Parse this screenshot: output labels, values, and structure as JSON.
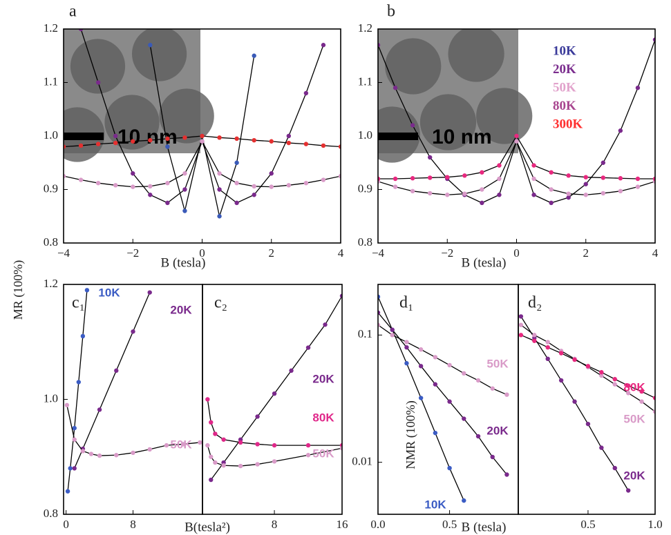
{
  "chart_data": [
    {
      "type": "scatter",
      "label": "a",
      "ylabel": "MR (100%)",
      "xlabel": "B (tesla)",
      "inset_text": "10 nm",
      "xlim": [
        -4,
        4
      ],
      "ylim": [
        0.8,
        1.2
      ],
      "xticks": [
        {
          "value": -4,
          "label": "−4"
        },
        {
          "value": -2,
          "label": "−2"
        },
        0,
        2,
        4
      ],
      "yticks": [
        0.8,
        0.9,
        {
          "value": 1.0,
          "label": "1.0"
        },
        1.1,
        1.2
      ],
      "x": [
        -4,
        -3.5,
        -3,
        -2.5,
        -2,
        -1.5,
        -1,
        -0.5,
        0,
        0.5,
        1,
        1.5,
        2,
        2.5,
        3,
        3.5,
        4
      ],
      "series": [
        {
          "color": "#3a5ab8",
          "values": [
            null,
            null,
            null,
            null,
            null,
            1.17,
            0.98,
            0.86,
            1.0,
            0.85,
            0.95,
            1.15,
            null,
            null,
            null,
            null,
            null
          ]
        },
        {
          "color": "#7a2a8c",
          "values": [
            null,
            1.2,
            1.1,
            1.0,
            0.93,
            0.89,
            0.875,
            0.9,
            0.99,
            0.9,
            0.875,
            0.89,
            0.93,
            1.0,
            1.08,
            1.17,
            null
          ]
        },
        {
          "color": "#d99bc8",
          "values": [
            0.925,
            0.918,
            0.912,
            0.908,
            0.905,
            0.906,
            0.912,
            0.93,
            0.99,
            0.93,
            0.912,
            0.906,
            0.905,
            0.908,
            0.912,
            0.918,
            0.925
          ]
        },
        {
          "color": "#e53030",
          "values": [
            0.98,
            0.982,
            0.985,
            0.987,
            0.99,
            0.992,
            0.995,
            0.997,
            1.0,
            0.997,
            0.995,
            0.992,
            0.99,
            0.987,
            0.985,
            0.982,
            0.98
          ]
        }
      ]
    },
    {
      "type": "scatter",
      "label": "b",
      "xlabel": "B (tesla)",
      "inset_text": "10 nm",
      "xlim": [
        -4,
        4
      ],
      "ylim": [
        0.8,
        1.2
      ],
      "xticks": [
        {
          "value": -4,
          "label": "−4"
        },
        {
          "value": -2,
          "label": "−2"
        },
        0,
        2,
        4
      ],
      "yticks": [
        0.8,
        0.9,
        {
          "value": 1.0,
          "label": "1.0"
        },
        1.1,
        1.2
      ],
      "legend": [
        {
          "name": "10K",
          "color": "#3a3a9a"
        },
        {
          "name": "20K",
          "color": "#7b2d8e"
        },
        {
          "name": "50K",
          "color": "#e2a3cc"
        },
        {
          "name": "80K",
          "color": "#a8458f"
        },
        {
          "name": "300K",
          "color": "#ff3030"
        }
      ],
      "x": [
        -4,
        -3.5,
        -3,
        -2.5,
        -2,
        -1.5,
        -1,
        -0.5,
        0,
        0.5,
        1,
        1.5,
        2,
        2.5,
        3,
        3.5,
        4
      ],
      "series": [
        {
          "color": "#7a2a8c",
          "values": [
            1.17,
            1.09,
            1.02,
            0.96,
            0.92,
            0.89,
            0.875,
            0.89,
            0.99,
            0.89,
            0.875,
            0.885,
            0.91,
            0.95,
            1.01,
            1.09,
            1.18
          ]
        },
        {
          "color": "#d99bc8",
          "values": [
            0.915,
            0.905,
            0.897,
            0.893,
            0.89,
            0.892,
            0.9,
            0.92,
            0.99,
            0.92,
            0.9,
            0.892,
            0.89,
            0.893,
            0.897,
            0.905,
            0.915
          ]
        },
        {
          "color": "#e8287f",
          "values": [
            0.92,
            0.92,
            0.921,
            0.922,
            0.923,
            0.926,
            0.932,
            0.945,
            1.0,
            0.945,
            0.932,
            0.926,
            0.923,
            0.922,
            0.921,
            0.92,
            0.92
          ]
        }
      ]
    },
    {
      "type": "scatter",
      "label": "c₁",
      "xlabel": "B(tesla²)",
      "xlim": [
        -0.3,
        16.3
      ],
      "ylim": [
        0.8,
        1.2
      ],
      "xticks": [
        0,
        8
      ],
      "yticks": [
        0.8,
        {
          "value": 1.0,
          "label": "1.0"
        },
        1.2
      ],
      "series": [
        {
          "name": "10K",
          "color": "#3b5cc4",
          "x": [
            0.2,
            0.5,
            1,
            1.5,
            2,
            2.5
          ],
          "values": [
            0.84,
            0.88,
            0.95,
            1.03,
            1.11,
            1.19
          ]
        },
        {
          "name": "20K",
          "color": "#7a2a8c",
          "x": [
            1,
            2,
            4,
            6,
            8,
            10
          ],
          "values": [
            0.88,
            0.914,
            0.982,
            1.05,
            1.118,
            1.186
          ]
        },
        {
          "name": "50K",
          "color": "#d99bc8",
          "x": [
            0.1,
            1,
            2,
            3,
            4,
            6,
            8,
            10,
            12,
            14,
            16
          ],
          "values": [
            0.99,
            0.93,
            0.91,
            0.905,
            0.902,
            0.903,
            0.907,
            0.913,
            0.92,
            0.922,
            0.925
          ]
        }
      ]
    },
    {
      "type": "scatter",
      "label": "c₂",
      "xlim": [
        -0.5,
        16
      ],
      "ylim": [
        0.8,
        1.2
      ],
      "xticks": [
        8,
        16
      ],
      "yticks": [],
      "series": [
        {
          "name": "20K",
          "color": "#7a2a8c",
          "x": [
            0.5,
            2,
            4,
            6,
            8,
            10,
            12,
            14,
            16
          ],
          "values": [
            0.86,
            0.89,
            0.93,
            0.97,
            1.01,
            1.05,
            1.09,
            1.13,
            1.18
          ]
        },
        {
          "name": "80K",
          "color": "#e0288a",
          "x": [
            0.1,
            0.5,
            1,
            2,
            4,
            6,
            8,
            12,
            16
          ],
          "values": [
            1.0,
            0.96,
            0.94,
            0.93,
            0.925,
            0.922,
            0.92,
            0.92,
            0.92
          ]
        },
        {
          "name": "50K",
          "color": "#d99bc8",
          "x": [
            0.1,
            0.5,
            1,
            2,
            4,
            6,
            8,
            12,
            16
          ],
          "values": [
            0.92,
            0.9,
            0.89,
            0.885,
            0.884,
            0.887,
            0.892,
            0.903,
            0.915
          ]
        }
      ]
    },
    {
      "type": "scatter",
      "label": "d₁",
      "ylabel": "NMR (100%)",
      "xlabel": "B (tesla)",
      "log_y": true,
      "xlim": [
        0,
        0.98
      ],
      "ylim": [
        0.0039,
        0.25
      ],
      "xticks": [
        {
          "value": 0,
          "label": "0.0"
        },
        0.5
      ],
      "yticks": [
        0.01,
        0.1
      ],
      "series": [
        {
          "name": "10K",
          "color": "#3b5cc4",
          "x": [
            0,
            0.1,
            0.2,
            0.3,
            0.4,
            0.5,
            0.6
          ],
          "values": [
            0.2,
            0.11,
            0.06,
            0.032,
            0.017,
            0.009,
            0.005
          ]
        },
        {
          "name": "20K",
          "color": "#7a2a8c",
          "x": [
            0,
            0.1,
            0.2,
            0.3,
            0.4,
            0.5,
            0.6,
            0.7,
            0.8,
            0.9
          ],
          "values": [
            0.15,
            0.11,
            0.08,
            0.057,
            0.041,
            0.03,
            0.022,
            0.016,
            0.011,
            0.008
          ]
        },
        {
          "name": "50K",
          "color": "#d99bc8",
          "x": [
            0,
            0.1,
            0.2,
            0.3,
            0.4,
            0.5,
            0.6,
            0.7,
            0.8,
            0.9
          ],
          "values": [
            0.12,
            0.1,
            0.088,
            0.077,
            0.067,
            0.058,
            0.05,
            0.044,
            0.038,
            0.034
          ]
        }
      ]
    },
    {
      "type": "scatter",
      "label": "d₂",
      "log_y": true,
      "xlim": [
        -0.02,
        1
      ],
      "ylim": [
        0.0039,
        0.25
      ],
      "xticks": [
        0.5,
        {
          "value": 1,
          "label": "1.0"
        }
      ],
      "yticks": [],
      "series": [
        {
          "name": "20K",
          "color": "#7a2a8c",
          "x": [
            0,
            0.1,
            0.2,
            0.3,
            0.4,
            0.5,
            0.6,
            0.7,
            0.8
          ],
          "values": [
            0.14,
            0.095,
            0.065,
            0.044,
            0.03,
            0.02,
            0.013,
            0.009,
            0.006
          ]
        },
        {
          "name": "50K",
          "color": "#d99bc8",
          "x": [
            0,
            0.1,
            0.2,
            0.3,
            0.4,
            0.5,
            0.6,
            0.7,
            0.8,
            0.9,
            1
          ],
          "values": [
            0.12,
            0.1,
            0.088,
            0.075,
            0.065,
            0.056,
            0.048,
            0.041,
            0.035,
            0.03,
            0.025
          ]
        },
        {
          "name": "80K",
          "color": "#e8287f",
          "x": [
            0,
            0.1,
            0.2,
            0.3,
            0.4,
            0.5,
            0.6,
            0.7,
            0.8,
            0.9,
            1
          ],
          "values": [
            0.1,
            0.09,
            0.08,
            0.072,
            0.064,
            0.057,
            0.051,
            0.045,
            0.04,
            0.036,
            0.032
          ]
        }
      ]
    }
  ]
}
